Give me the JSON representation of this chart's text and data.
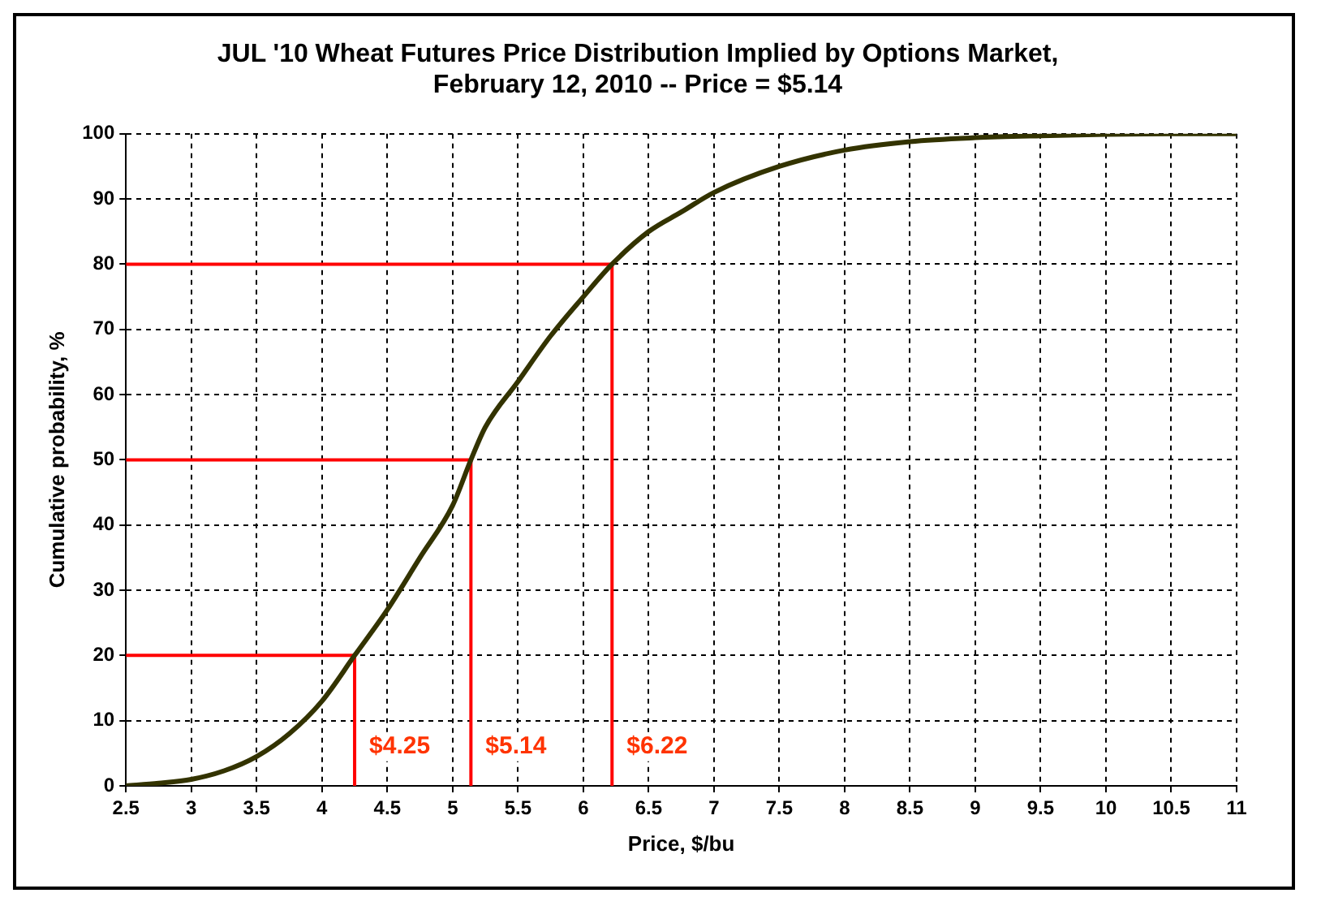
{
  "chart_data": {
    "type": "line",
    "title": "JUL '10 Wheat Futures Price Distribution Implied by Options Market, February 12, 2010 -- Price = $5.14",
    "xlabel": "Price, $/bu",
    "ylabel": "Cumulative probability, %",
    "xlim": [
      2.5,
      11
    ],
    "xticks": [
      2.5,
      3,
      3.5,
      4,
      4.5,
      5,
      5.5,
      6,
      6.5,
      7,
      7.5,
      8,
      8.5,
      9,
      9.5,
      10,
      10.5,
      11
    ],
    "ylim": [
      0,
      100
    ],
    "yticks": [
      0,
      10,
      20,
      30,
      40,
      50,
      60,
      70,
      80,
      90,
      100
    ],
    "grid": true,
    "legend": false,
    "marker": "none",
    "series": [
      {
        "color": "#333300",
        "x": [
          2.5,
          2.75,
          3,
          3.25,
          3.5,
          3.75,
          4,
          4.25,
          4.5,
          4.75,
          5,
          5.14,
          5.25,
          5.5,
          5.75,
          6,
          6.22,
          6.5,
          6.75,
          7,
          7.5,
          8,
          8.5,
          9,
          9.5,
          10,
          10.5,
          11
        ],
        "values": [
          0,
          0.4,
          1,
          2.3,
          4.5,
          8,
          13,
          20,
          27,
          35,
          43,
          50,
          55,
          62,
          69,
          75,
          80,
          85,
          88,
          91,
          95,
          97.5,
          98.8,
          99.4,
          99.7,
          99.9,
          100,
          100
        ]
      },
      {
        "color": "#ff0000",
        "x": [
          2.5,
          4.25,
          4.25
        ],
        "values": [
          20,
          20,
          0
        ]
      },
      {
        "color": "#ff0000",
        "x": [
          2.5,
          5.14,
          5.14
        ],
        "values": [
          50,
          50,
          0
        ]
      },
      {
        "color": "#ff0000",
        "x": [
          2.5,
          6.22,
          6.22
        ],
        "values": [
          80,
          80,
          0
        ]
      }
    ],
    "annotations": [
      {
        "text": "$4.25",
        "x": 4.25,
        "y": 6
      },
      {
        "text": "$5.14",
        "x": 5.14,
        "y": 6
      },
      {
        "text": "$6.22",
        "x": 6.22,
        "y": 6
      }
    ]
  }
}
